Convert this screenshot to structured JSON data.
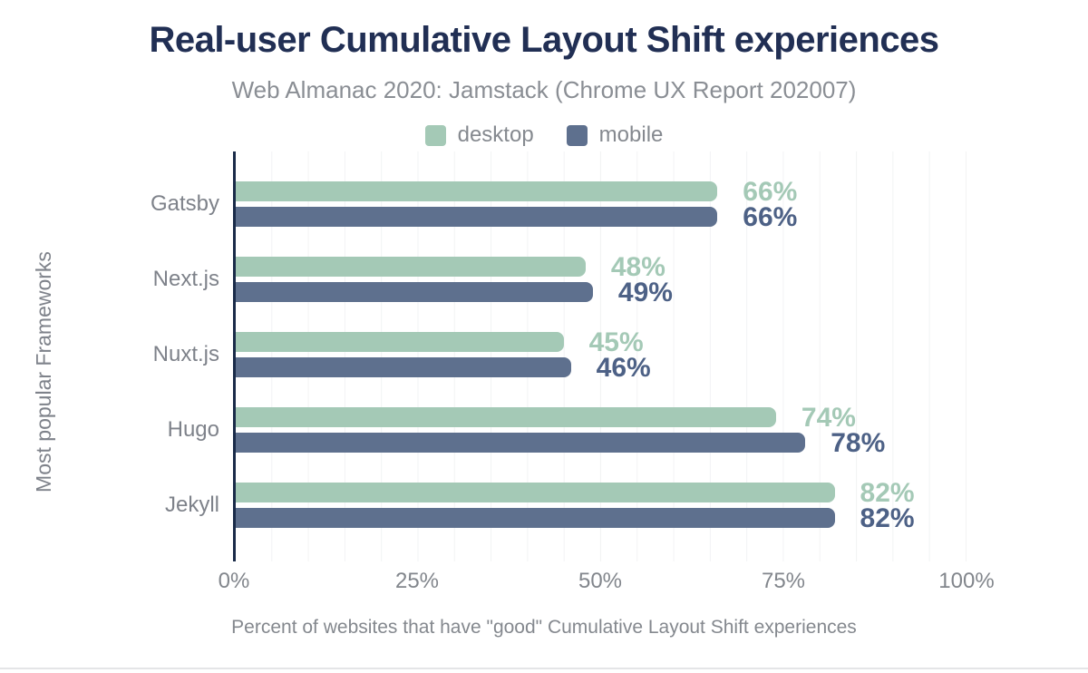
{
  "title": "Real-user Cumulative Layout Shift experiences",
  "subtitle": "Web Almanac 2020: Jamstack (Chrome UX Report 202007)",
  "chart_data": {
    "type": "bar",
    "orientation": "horizontal",
    "title": "Real-user Cumulative Layout Shift experiences",
    "subtitle": "Web Almanac 2020: Jamstack (Chrome UX Report 202007)",
    "categories": [
      "Gatsby",
      "Next.js",
      "Nuxt.js",
      "Hugo",
      "Jekyll"
    ],
    "series": [
      {
        "name": "desktop",
        "color": "#a4c9b6",
        "label_color": "#a4c9b6",
        "values": [
          66,
          48,
          45,
          74,
          82
        ]
      },
      {
        "name": "mobile",
        "color": "#5e708e",
        "label_color": "#4d6186",
        "values": [
          66,
          49,
          46,
          78,
          82
        ]
      }
    ],
    "value_suffix": "%",
    "xlabel": "Percent of websites that have \"good\" Cumulative Layout Shift experiences",
    "ylabel": "Most popular Frameworks",
    "x_tick_values": [
      0,
      25,
      50,
      75,
      100
    ],
    "x_tick_labels": [
      "0%",
      "25%",
      "50%",
      "75%",
      "100%"
    ],
    "xlim": [
      0,
      100
    ],
    "grid": "vertical gridlines every 5%",
    "legend_position": "top"
  },
  "colors": {
    "title": "#212f54",
    "axis_line": "#1a2b49",
    "gridline": "#f2f3f4",
    "muted_text": "#85898f",
    "desktop": "#a4c9b6",
    "mobile": "#5e708e",
    "mobile_label": "#4d6186"
  }
}
